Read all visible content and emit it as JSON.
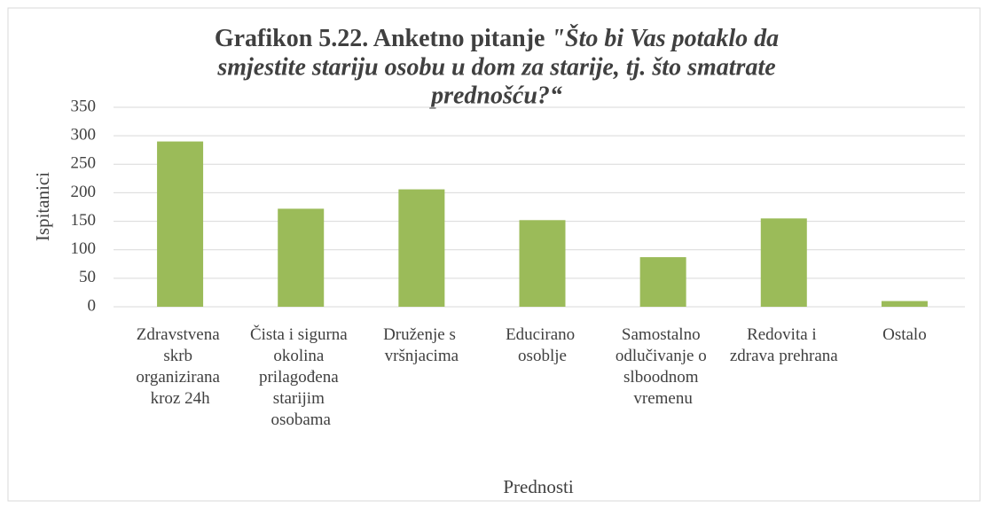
{
  "chart_data": {
    "type": "bar",
    "title": {
      "lead": "Grafikon 5.22. Anketno pitanje",
      "question": [
        "\"Što bi Vas potaklo da",
        "smjestite stariju osobu u dom za starije, tj. što smatrate",
        "prednošću?“"
      ]
    },
    "x_label": "Prednosti",
    "y_label": "Ispitanici",
    "categories": [
      "Zdravstvena skrb organizirana kroz 24h",
      "Čista i sigurna okolina prilagođena starijim osobama",
      "Druženje s vršnjacima",
      "Educirano osoblje",
      "Samostalno odlučivanje o slboodnom vremenu",
      "Redovita i zdrava prehrana",
      "Ostalo"
    ],
    "values": [
      290,
      172,
      206,
      152,
      87,
      155,
      10
    ],
    "color": "#9bbb59",
    "ylim": [
      0,
      350
    ],
    "yticks": [
      0,
      50,
      100,
      150,
      200,
      250,
      300,
      350
    ],
    "grid": true
  }
}
